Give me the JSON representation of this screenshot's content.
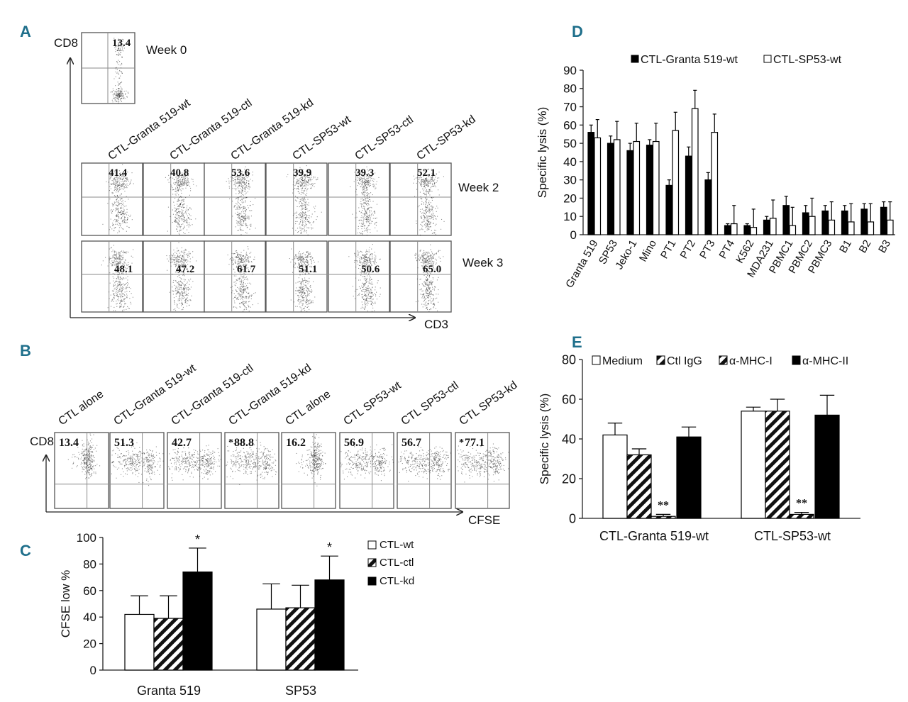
{
  "panels": {
    "A": "A",
    "B": "B",
    "C": "C",
    "D": "D",
    "E": "E"
  },
  "panel_a": {
    "y_axis": "CD8",
    "x_axis": "CD3",
    "week0": {
      "label": "Week 0",
      "value": "13.4"
    },
    "week2_label": "Week 2",
    "week3_label": "Week 3",
    "columns": [
      "CTL-Granta 519-wt",
      "CTL-Granta 519-ctl",
      "CTL-Granta 519-kd",
      "CTL-SP53-wt",
      "CTL-SP53-ctl",
      "CTL-SP53-kd"
    ],
    "week2_values": [
      "41.4",
      "40.8",
      "53.6",
      "39.9",
      "39.3",
      "52.1"
    ],
    "week3_values": [
      "48.1",
      "47.2",
      "61.7",
      "51.1",
      "50.6",
      "65.0"
    ]
  },
  "panel_b": {
    "y_axis": "CD8",
    "x_axis": "CFSE",
    "columns": [
      "CTL alone",
      "CTL-Granta 519-wt",
      "CTL-Granta 519-ctl",
      "CTL-Granta 519-kd",
      "CTL alone",
      "CTL SP53-wt",
      "CTL SP53-ctl",
      "CTL SP53-kd"
    ],
    "values": [
      "13.4",
      "51.3",
      "42.7",
      "88.8",
      "16.2",
      "56.9",
      "56.7",
      "77.1"
    ],
    "star": "*"
  },
  "chart_data": [
    {
      "id": "C",
      "type": "bar",
      "title": "",
      "xlabel": "",
      "ylabel": "CFSE low %",
      "categories": [
        "Granta 519",
        "SP53"
      ],
      "ylim": [
        0,
        100
      ],
      "yticks": [
        0,
        20,
        40,
        60,
        80,
        100
      ],
      "series": [
        {
          "name": "CTL-wt",
          "fill": "white",
          "values": [
            42,
            46
          ],
          "errors": [
            14,
            19
          ]
        },
        {
          "name": "CTL-ctl",
          "fill": "hatch",
          "values": [
            39,
            47
          ],
          "errors": [
            17,
            17
          ]
        },
        {
          "name": "CTL-kd",
          "fill": "black",
          "values": [
            74,
            68
          ],
          "errors": [
            18,
            18
          ]
        }
      ],
      "significance": [
        "*",
        "*"
      ],
      "legend": "right"
    },
    {
      "id": "D",
      "type": "bar",
      "title": "",
      "xlabel": "",
      "ylabel": "Specific lysis (%)",
      "categories": [
        "Granta 519",
        "SP53",
        "Jeko-1",
        "Mino",
        "PT1",
        "PT2",
        "PT3",
        "PT4",
        "K562",
        "MDA231",
        "PBMC1",
        "PBMC2",
        "PBMC3",
        "B1",
        "B2",
        "B3"
      ],
      "ylim": [
        0,
        90
      ],
      "yticks": [
        0,
        10,
        20,
        30,
        40,
        50,
        60,
        70,
        80,
        90
      ],
      "series": [
        {
          "name": "CTL-Granta 519-wt",
          "fill": "black",
          "values": [
            56,
            50,
            46,
            49,
            27,
            43,
            30,
            5,
            5,
            8,
            16,
            12,
            13,
            13,
            14,
            15
          ],
          "errors": [
            4,
            4,
            4,
            3,
            3,
            5,
            4,
            1,
            1,
            2,
            5,
            4,
            3,
            3,
            3,
            3
          ]
        },
        {
          "name": "CTL-SP53-wt",
          "fill": "white",
          "values": [
            53,
            52,
            51,
            51,
            57,
            69,
            56,
            6,
            4,
            9,
            5,
            10,
            8,
            7,
            7,
            8
          ],
          "errors": [
            10,
            10,
            10,
            10,
            10,
            10,
            10,
            10,
            10,
            10,
            10,
            10,
            10,
            10,
            10,
            10
          ]
        }
      ],
      "legend": "top"
    },
    {
      "id": "E",
      "type": "bar",
      "title": "",
      "xlabel": "",
      "ylabel": "Specific lysis (%)",
      "categories": [
        "CTL-Granta 519-wt",
        "CTL-SP53-wt"
      ],
      "ylim": [
        0,
        80
      ],
      "yticks": [
        0,
        20,
        40,
        60,
        80
      ],
      "series": [
        {
          "name": "Medium",
          "fill": "white",
          "values": [
            42,
            54
          ],
          "errors": [
            6,
            2
          ]
        },
        {
          "name": "Ctl IgG",
          "fill": "hatch",
          "values": [
            32,
            54
          ],
          "errors": [
            3,
            6
          ]
        },
        {
          "name": "α-MHC-I",
          "fill": "hatch",
          "values": [
            1,
            2
          ],
          "errors": [
            1,
            1
          ]
        },
        {
          "name": "α-MHC-II",
          "fill": "black",
          "values": [
            41,
            52
          ],
          "errors": [
            5,
            10
          ]
        }
      ],
      "significance": [
        "**",
        "**"
      ],
      "legend": "top"
    }
  ]
}
